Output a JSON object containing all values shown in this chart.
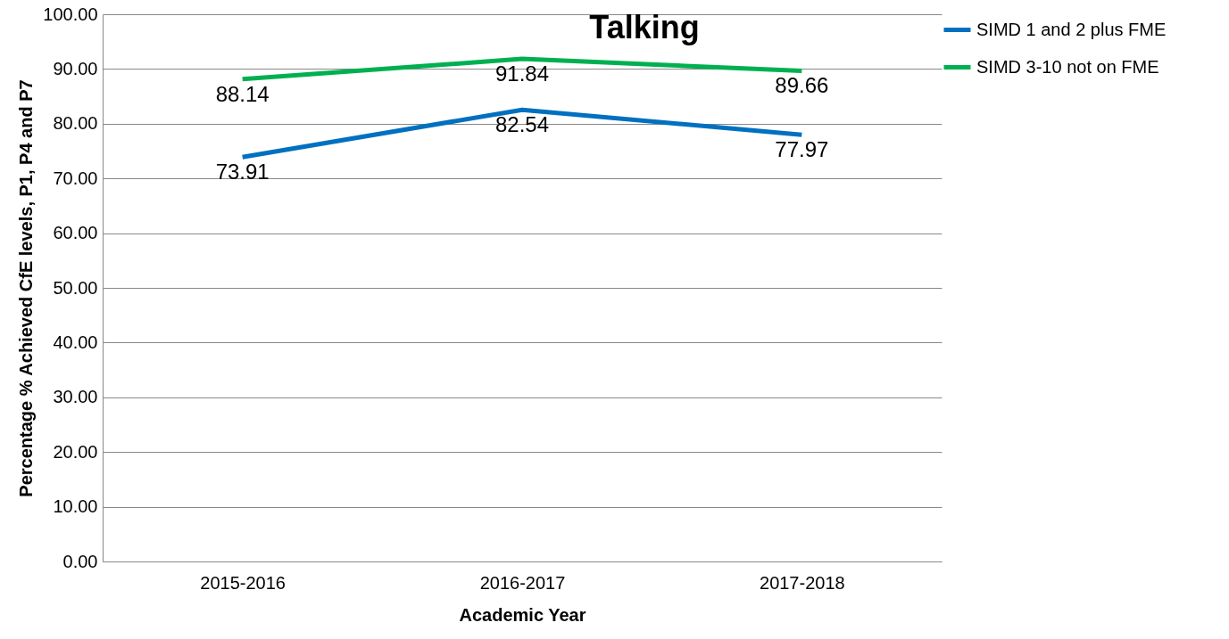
{
  "chart_data": {
    "type": "line",
    "title": "Talking",
    "xlabel": "Academic Year",
    "ylabel": "Percentage % Achieved CfE levels, P1, P4 and P7",
    "categories": [
      "2015-2016",
      "2016-2017",
      "2017-2018"
    ],
    "series": [
      {
        "name": "SIMD 1 and 2 plus FME",
        "color": "#0070c0",
        "values": [
          73.91,
          82.54,
          77.97
        ]
      },
      {
        "name": "SIMD 3-10 not on FME",
        "color": "#00b050",
        "values": [
          88.14,
          91.84,
          89.66
        ]
      }
    ],
    "ylim": [
      0,
      100
    ],
    "yticks": [
      {
        "value": 0,
        "label": "0.00"
      },
      {
        "value": 10,
        "label": "10.00"
      },
      {
        "value": 20,
        "label": "20.00"
      },
      {
        "value": 30,
        "label": "30.00"
      },
      {
        "value": 40,
        "label": "40.00"
      },
      {
        "value": 50,
        "label": "50.00"
      },
      {
        "value": 60,
        "label": "60.00"
      },
      {
        "value": 70,
        "label": "70.00"
      },
      {
        "value": 80,
        "label": "80.00"
      },
      {
        "value": 90,
        "label": "90.00"
      },
      {
        "value": 100,
        "label": "100.00"
      }
    ],
    "grid": "y",
    "legend": "right",
    "marker": "none",
    "line_style": "solid",
    "data_labels": true
  }
}
